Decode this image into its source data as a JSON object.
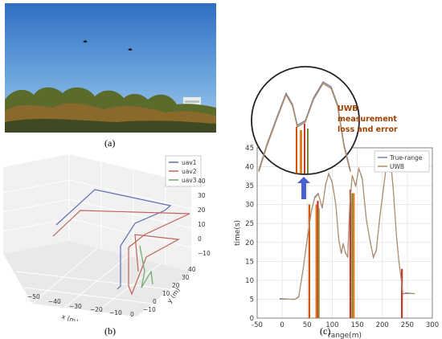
{
  "captions": {
    "a": "(a)",
    "b": "(b)",
    "c": "(c)"
  },
  "panel_b": {
    "legend": [
      "uav1",
      "uav2",
      "uav3"
    ],
    "x_label": "x (m)",
    "y_label": "y (m)",
    "x_ticks": [
      "−50",
      "−40",
      "−30",
      "−20",
      "−10",
      "0"
    ],
    "y_ticks": [
      "−10",
      "0",
      "10",
      "20",
      "30",
      "40"
    ],
    "z_ticks": [
      "−10",
      "0",
      "10",
      "20",
      "30",
      "40"
    ],
    "colors": {
      "uav1": "#5b6fb0",
      "uav2": "#c0625a",
      "uav3": "#6aa86a"
    }
  },
  "chart_data": {
    "type": "line",
    "xlabel": "range(m)",
    "ylabel": "time(s)",
    "xlim": [
      -50,
      300
    ],
    "ylim": [
      0,
      45
    ],
    "x_ticks": [
      -50,
      0,
      50,
      100,
      150,
      200,
      250,
      300
    ],
    "y_ticks": [
      0,
      5,
      10,
      15,
      20,
      25,
      30,
      35,
      40,
      45
    ],
    "grid": true,
    "legend_position": "top-right",
    "series": [
      {
        "name": "True-range",
        "color": "#7b86a8",
        "x": [
          -5,
          25,
          33,
          42,
          50,
          58,
          65,
          72,
          80,
          87,
          93,
          100,
          107,
          113,
          118,
          122,
          126,
          131,
          135,
          140,
          147,
          153,
          160,
          168,
          175,
          182,
          188,
          195,
          201,
          207,
          212,
          217,
          222,
          228,
          233,
          238,
          241,
          247,
          265
        ],
        "y": [
          5,
          5,
          5.5,
          13,
          21,
          28,
          32,
          33,
          29,
          35.5,
          38,
          36,
          30,
          21,
          17,
          19.5,
          17.5,
          16,
          30,
          37.5,
          35,
          39.5,
          37,
          26,
          21,
          16,
          18,
          26.5,
          33,
          39,
          43,
          41,
          34,
          22,
          15,
          10,
          6.5,
          6.5,
          6.5
        ]
      },
      {
        "name": "UWB",
        "color": "#b08c64",
        "x": [
          -5,
          25,
          33,
          42,
          50,
          58,
          65,
          72,
          80,
          87,
          93,
          100,
          107,
          113,
          118,
          122,
          126,
          131,
          135,
          140,
          147,
          153,
          160,
          168,
          175,
          182,
          188,
          195,
          201,
          207,
          212,
          217,
          222,
          228,
          233,
          238,
          241,
          247,
          265
        ],
        "y": [
          5.2,
          4.9,
          5.7,
          13.2,
          20.8,
          28.3,
          31.7,
          32.8,
          29.3,
          35.2,
          38.3,
          35.7,
          30.3,
          20.7,
          17.3,
          19.8,
          17.2,
          16.3,
          29.7,
          37.8,
          34.7,
          39.7,
          36.6,
          26.3,
          20.7,
          16.3,
          17.7,
          26.8,
          32.7,
          39.3,
          42.7,
          41.3,
          33.7,
          22.3,
          15.2,
          9.8,
          6.3,
          6.7,
          6.4
        ]
      }
    ],
    "error_spikes": [
      {
        "x": 54,
        "y_top": 30,
        "color": "#d35400"
      },
      {
        "x": 68,
        "y_top": 30,
        "color": "#e67e22"
      },
      {
        "x": 71,
        "y_top": 31,
        "color": "#c0392b"
      },
      {
        "x": 73,
        "y_top": 29,
        "color": "#9b8c3a"
      },
      {
        "x": 136,
        "y_top": 34,
        "color": "#c0392b"
      },
      {
        "x": 140,
        "y_top": 33,
        "color": "#7a8a3a"
      },
      {
        "x": 143,
        "y_top": 33,
        "color": "#e67e22"
      },
      {
        "x": 239,
        "y_top": 13,
        "color": "#c0392b"
      }
    ],
    "zoom_annotation": "UWB\nmeasurement\nloss and error"
  }
}
